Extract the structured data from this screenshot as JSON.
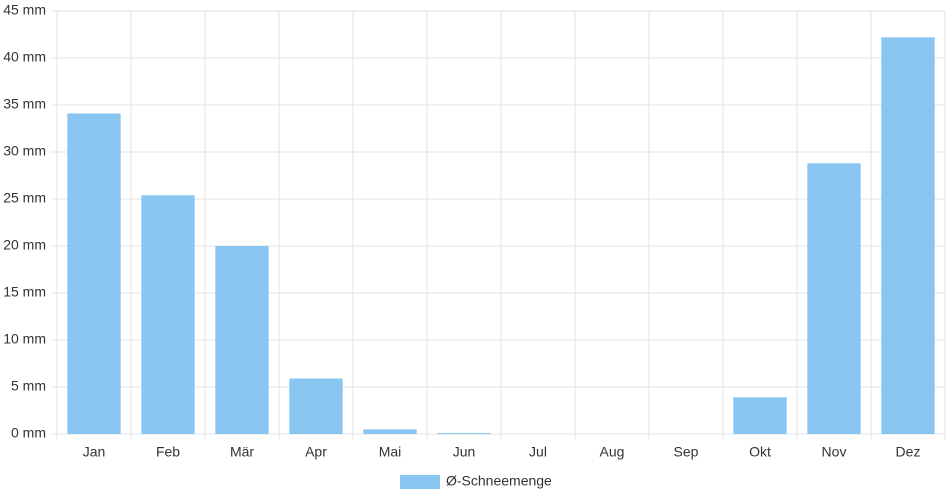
{
  "chart_data": {
    "type": "bar",
    "categories": [
      "Jan",
      "Feb",
      "Mär",
      "Apr",
      "Mai",
      "Jun",
      "Jul",
      "Aug",
      "Sep",
      "Okt",
      "Nov",
      "Dez"
    ],
    "series": [
      {
        "name": "Ø-Schneemenge",
        "color": "#88c6f1",
        "values": [
          34.1,
          25.4,
          20.0,
          5.9,
          0.5,
          0.1,
          0,
          0,
          0,
          3.9,
          28.8,
          42.2
        ]
      }
    ],
    "ylim": [
      0,
      45
    ],
    "yticks": [
      {
        "value": 0,
        "label": "0 mm"
      },
      {
        "value": 5,
        "label": "5 mm"
      },
      {
        "value": 10,
        "label": "10 mm"
      },
      {
        "value": 15,
        "label": "15 mm"
      },
      {
        "value": 20,
        "label": "20 mm"
      },
      {
        "value": 25,
        "label": "25 mm"
      },
      {
        "value": 30,
        "label": "30 mm"
      },
      {
        "value": 35,
        "label": "35 mm"
      },
      {
        "value": 40,
        "label": "40 mm"
      },
      {
        "value": 45,
        "label": "45 mm"
      }
    ],
    "grid": true,
    "legend": "bottom"
  }
}
